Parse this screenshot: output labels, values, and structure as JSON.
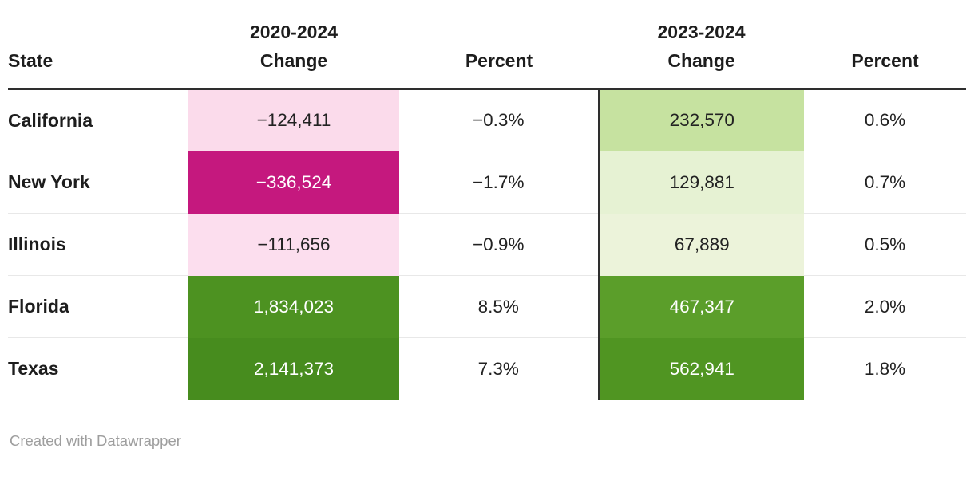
{
  "table": {
    "columns": [
      {
        "label": "State"
      },
      {
        "label": "2020-2024\nChange"
      },
      {
        "label": "Percent"
      },
      {
        "label": "2023-2024\nChange"
      },
      {
        "label": "Percent"
      }
    ],
    "rows": [
      {
        "state": "California",
        "change1": "−124,411",
        "change1_bg": "#fbdbeb",
        "change1_fg": "#222222",
        "percent1": "−0.3%",
        "change2": "232,570",
        "change2_bg": "#c6e2a0",
        "change2_fg": "#222222",
        "percent2": "0.6%"
      },
      {
        "state": "New York",
        "change1": "−336,524",
        "change1_bg": "#c5187e",
        "change1_fg": "#ffffff",
        "percent1": "−1.7%",
        "change2": "129,881",
        "change2_bg": "#e6f2d3",
        "change2_fg": "#222222",
        "percent2": "0.7%"
      },
      {
        "state": "Illinois",
        "change1": "−111,656",
        "change1_bg": "#fcdeee",
        "change1_fg": "#222222",
        "percent1": "−0.9%",
        "change2": "67,889",
        "change2_bg": "#ecf3da",
        "change2_fg": "#222222",
        "percent2": "0.5%"
      },
      {
        "state": "Florida",
        "change1": "1,834,023",
        "change1_bg": "#4d9221",
        "change1_fg": "#ffffff",
        "percent1": "8.5%",
        "change2": "467,347",
        "change2_bg": "#5b9e2a",
        "change2_fg": "#ffffff",
        "percent2": "2.0%"
      },
      {
        "state": "Texas",
        "change1": "2,141,373",
        "change1_bg": "#478c1e",
        "change1_fg": "#ffffff",
        "percent1": "7.3%",
        "change2": "562,941",
        "change2_bg": "#509522",
        "change2_fg": "#ffffff",
        "percent2": "1.8%"
      }
    ]
  },
  "footer": {
    "credit": "Created with Datawrapper"
  },
  "colors": {
    "header_rule": "#2e2e2e",
    "row_separator": "#e8e8e8",
    "negative_strong": "#c5187e",
    "negative_light": "#fbdbeb",
    "positive_strong": "#478c1e",
    "positive_light": "#ecf3da",
    "footer_text": "#9e9e9e"
  },
  "chart_data": {
    "type": "table",
    "title": "",
    "columns": [
      "State",
      "2020-2024 Change",
      "Percent",
      "2023-2024 Change",
      "Percent"
    ],
    "rows": [
      [
        "California",
        -124411,
        "-0.3%",
        232570,
        "0.6%"
      ],
      [
        "New York",
        -336524,
        "-1.7%",
        129881,
        "0.7%"
      ],
      [
        "Illinois",
        -111656,
        "-0.9%",
        67889,
        "0.5%"
      ],
      [
        "Florida",
        1834023,
        "8.5%",
        467347,
        "2.0%"
      ],
      [
        "Texas",
        2141373,
        "7.3%",
        562941,
        "1.8%"
      ]
    ],
    "heatmap_columns": [
      "2020-2024 Change",
      "2023-2024 Change"
    ],
    "palette": "pink-magenta for negative, green for positive (PiYG-style diverging)",
    "footer": "Created with Datawrapper"
  }
}
